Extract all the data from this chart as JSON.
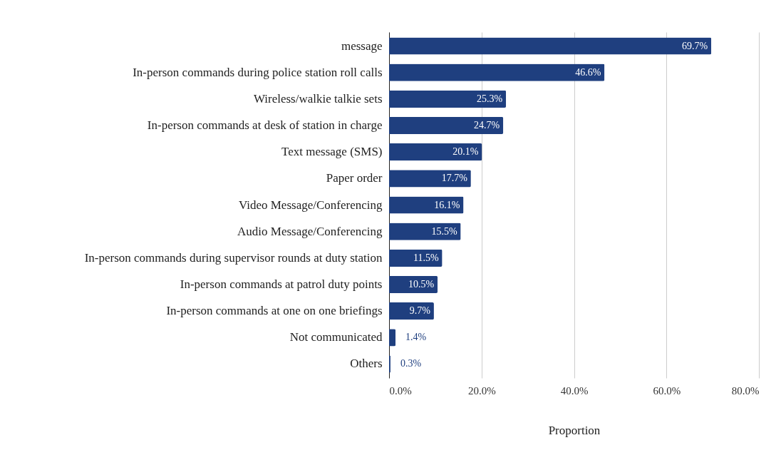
{
  "chart_data": {
    "type": "bar",
    "orientation": "horizontal",
    "xlabel": "Proportion",
    "categories": [
      "message",
      "In-person commands during police station roll calls",
      "Wireless/walkie talkie sets",
      "In-person commands at desk of station in charge",
      "Text message (SMS)",
      "Paper order",
      "Video Message/Conferencing",
      "Audio Message/Conferencing",
      "In-person commands during supervisor rounds at duty station",
      "In-person commands at patrol duty points",
      "In-person commands at one on one briefings",
      "Not communicated",
      "Others"
    ],
    "values": [
      69.7,
      46.6,
      25.3,
      24.7,
      20.1,
      17.7,
      16.1,
      15.5,
      11.5,
      10.5,
      9.7,
      1.4,
      0.3
    ],
    "value_labels": [
      "69.7%",
      "46.6%",
      "25.3%",
      "24.7%",
      "20.1%",
      "17.7%",
      "16.1%",
      "15.5%",
      "11.5%",
      "10.5%",
      "9.7%",
      "1.4%",
      "0.3%"
    ],
    "color": "#1f3f7f",
    "xlim": [
      0,
      80
    ],
    "xticks": [
      {
        "value": 0,
        "label": "0.0%"
      },
      {
        "value": 20,
        "label": "20.0%"
      },
      {
        "value": 40,
        "label": "40.0%"
      },
      {
        "value": 60,
        "label": "60.0%"
      },
      {
        "value": 80,
        "label": "80.0%"
      }
    ],
    "grid": "x"
  }
}
